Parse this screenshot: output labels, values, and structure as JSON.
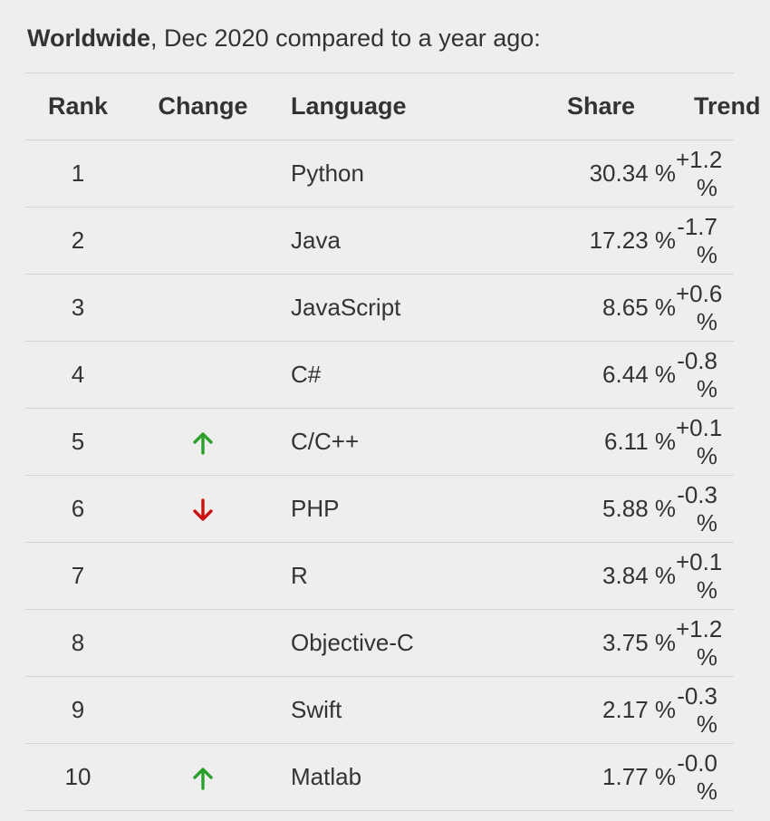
{
  "caption": {
    "bold": "Worldwide",
    "rest": ", Dec 2020 compared to a year ago:"
  },
  "table": {
    "headers": {
      "rank": "Rank",
      "change": "Change",
      "language": "Language",
      "share": "Share",
      "trend": "Trend"
    },
    "rows": [
      {
        "rank": "1",
        "change": "",
        "language": "Python",
        "share": "30.34 %",
        "trend": "+1.2 %"
      },
      {
        "rank": "2",
        "change": "",
        "language": "Java",
        "share": "17.23 %",
        "trend": "-1.7 %"
      },
      {
        "rank": "3",
        "change": "",
        "language": "JavaScript",
        "share": "8.65 %",
        "trend": "+0.6 %"
      },
      {
        "rank": "4",
        "change": "",
        "language": "C#",
        "share": "6.44 %",
        "trend": "-0.8 %"
      },
      {
        "rank": "5",
        "change": "up",
        "language": "C/C++",
        "share": "6.11 %",
        "trend": "+0.1 %"
      },
      {
        "rank": "6",
        "change": "down",
        "language": "PHP",
        "share": "5.88 %",
        "trend": "-0.3 %"
      },
      {
        "rank": "7",
        "change": "",
        "language": "R",
        "share": "3.84 %",
        "trend": "+0.1 %"
      },
      {
        "rank": "8",
        "change": "",
        "language": "Objective-C",
        "share": "3.75 %",
        "trend": "+1.2 %"
      },
      {
        "rank": "9",
        "change": "",
        "language": "Swift",
        "share": "2.17 %",
        "trend": "-0.3 %"
      },
      {
        "rank": "10",
        "change": "up",
        "language": "Matlab",
        "share": "1.77 %",
        "trend": "-0.0 %"
      }
    ]
  },
  "icons": {
    "up": "arrow-up-icon",
    "down": "arrow-down-icon"
  },
  "colors": {
    "up": "#2ca02c",
    "down": "#cc1111"
  }
}
